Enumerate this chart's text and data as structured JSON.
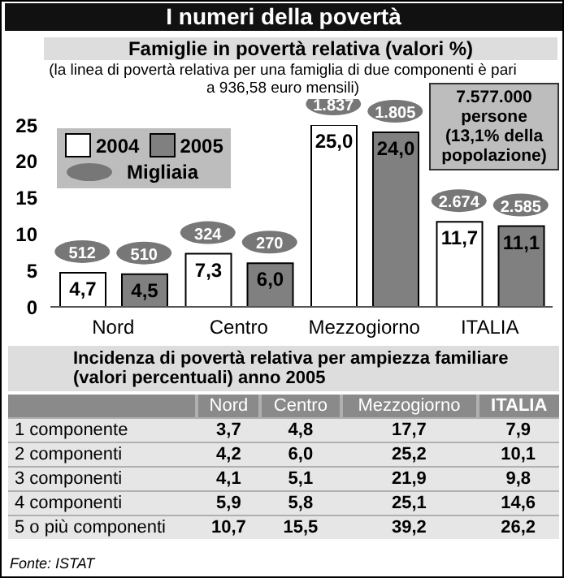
{
  "chart_data": [
    {
      "type": "bar",
      "title": "I numeri della povertà",
      "subtitle": "Famiglie in povertà relativa (valori %)",
      "categories": [
        "Nord",
        "Centro",
        "Mezzogiorno",
        "ITALIA"
      ],
      "series": [
        {
          "name": "2004",
          "color": "#ffffff",
          "values": [
            4.7,
            7.3,
            25.0,
            11.7
          ],
          "value_labels": [
            "4,7",
            "7,3",
            "25,0",
            "11,7"
          ]
        },
        {
          "name": "2005",
          "color": "#808080",
          "values": [
            4.5,
            6.0,
            24.0,
            11.1
          ],
          "value_labels": [
            "4,5",
            "6,0",
            "24,0",
            "11,1"
          ]
        }
      ],
      "ylim": [
        0,
        25
      ],
      "yticks": [
        0,
        5,
        10,
        15,
        20,
        25
      ],
      "legend": "top left",
      "annotations": [
        "(la linea di povertà relativa per una famiglia di due componenti è pari a 936,58 euro mensili)",
        "Migliaia",
        "7.577.000 persone (13,1% della popolazione)",
        {
          "text": "512",
          "x": "Nord",
          "y": 4.7
        },
        {
          "text": "510",
          "x": "Nord",
          "y": 4.5
        },
        {
          "text": "324",
          "x": "Centro",
          "y": 7.3
        },
        {
          "text": "270",
          "x": "Centro",
          "y": 6.0
        },
        {
          "text": "1.837",
          "x": "Mezzogiorno",
          "y": 25.0
        },
        {
          "text": "1.805",
          "x": "Mezzogiorno",
          "y": 24.0
        },
        {
          "text": "2.674",
          "x": "ITALIA",
          "y": 11.7
        },
        {
          "text": "2.585",
          "x": "ITALIA",
          "y": 11.1
        }
      ]
    },
    {
      "type": "heatmap",
      "title": "Incidenza di povertà relativa per ampiezza familiare (valori percentuali) anno 2005",
      "categories": [
        "Nord",
        "Centro",
        "Mezzogiorno",
        "ITALIA"
      ],
      "y_categories": [
        "1 componente",
        "2 componenti",
        "3 componenti",
        "4 componenti",
        "5 o più componenti"
      ],
      "cells": [
        [
          3.7,
          4.8,
          17.7,
          7.9
        ],
        [
          4.2,
          6.0,
          25.2,
          10.1
        ],
        [
          4.1,
          5.1,
          21.9,
          9.8
        ],
        [
          5.9,
          5.8,
          25.1,
          14.6
        ],
        [
          10.7,
          15.5,
          39.2,
          26.2
        ]
      ],
      "cell_labels": [
        [
          "3,7",
          "4,8",
          "17,7",
          "7,9"
        ],
        [
          "4,2",
          "6,0",
          "25,2",
          "10,1"
        ],
        [
          "4,1",
          "5,1",
          "21,9",
          "9,8"
        ],
        [
          "5,9",
          "5,8",
          "25,1",
          "14,6"
        ],
        [
          "10,7",
          "15,5",
          "39,2",
          "26,2"
        ]
      ],
      "annotations": [
        "Fonte: ISTAT"
      ]
    }
  ]
}
